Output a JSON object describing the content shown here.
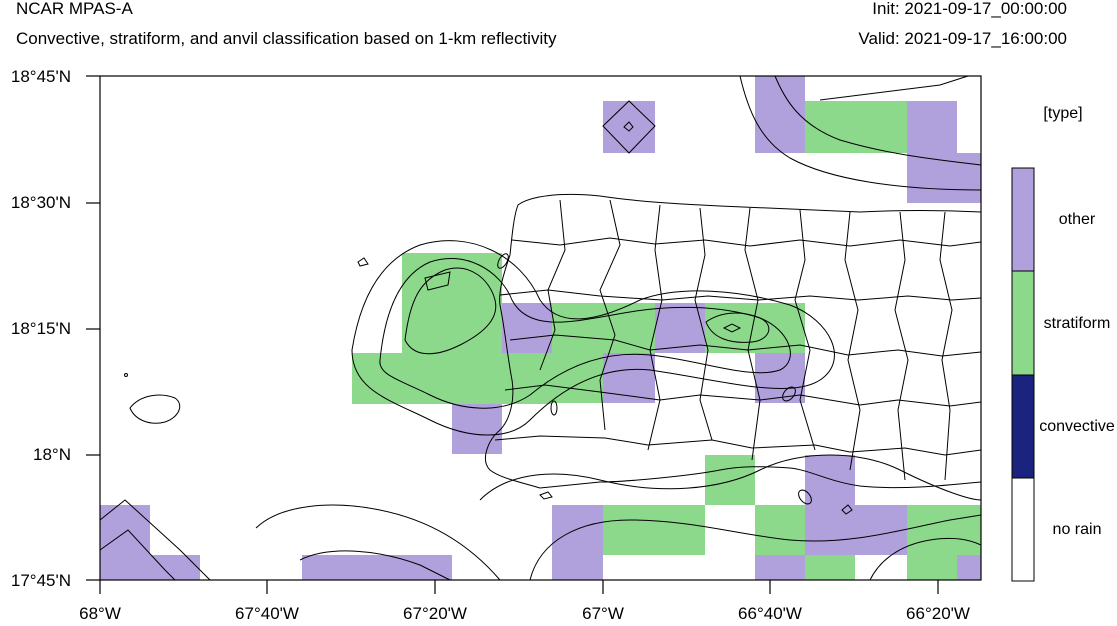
{
  "header": {
    "model_title": "NCAR MPAS-A",
    "subtitle": "Convective, stratiform, and anvil classification based on 1-km reflectivity",
    "init_time": "Init: 2021-09-17_00:00:00",
    "valid_time": "Valid: 2021-09-17_16:00:00"
  },
  "axes": {
    "lat_labels": [
      "18°45'N",
      "18°30'N",
      "18°15'N",
      "18°N",
      "17°45'N"
    ],
    "lon_labels": [
      "68°W",
      "67°40'W",
      "67°20'W",
      "67°W",
      "66°40'W",
      "66°20'W"
    ]
  },
  "colorbar": {
    "title": "[type]",
    "categories": [
      {
        "label": "other",
        "color": "#b0a0dc"
      },
      {
        "label": "stratiform",
        "color": "#8cd98c"
      },
      {
        "label": "convective",
        "color": "#1a237e"
      },
      {
        "label": "no rain",
        "color": "#ffffff"
      }
    ]
  },
  "colors": {
    "other": "#b0a0dc",
    "stratiform": "#8cd98c",
    "convective": "#1a237e",
    "no_rain": "#ffffff",
    "frame": "#000000"
  }
}
